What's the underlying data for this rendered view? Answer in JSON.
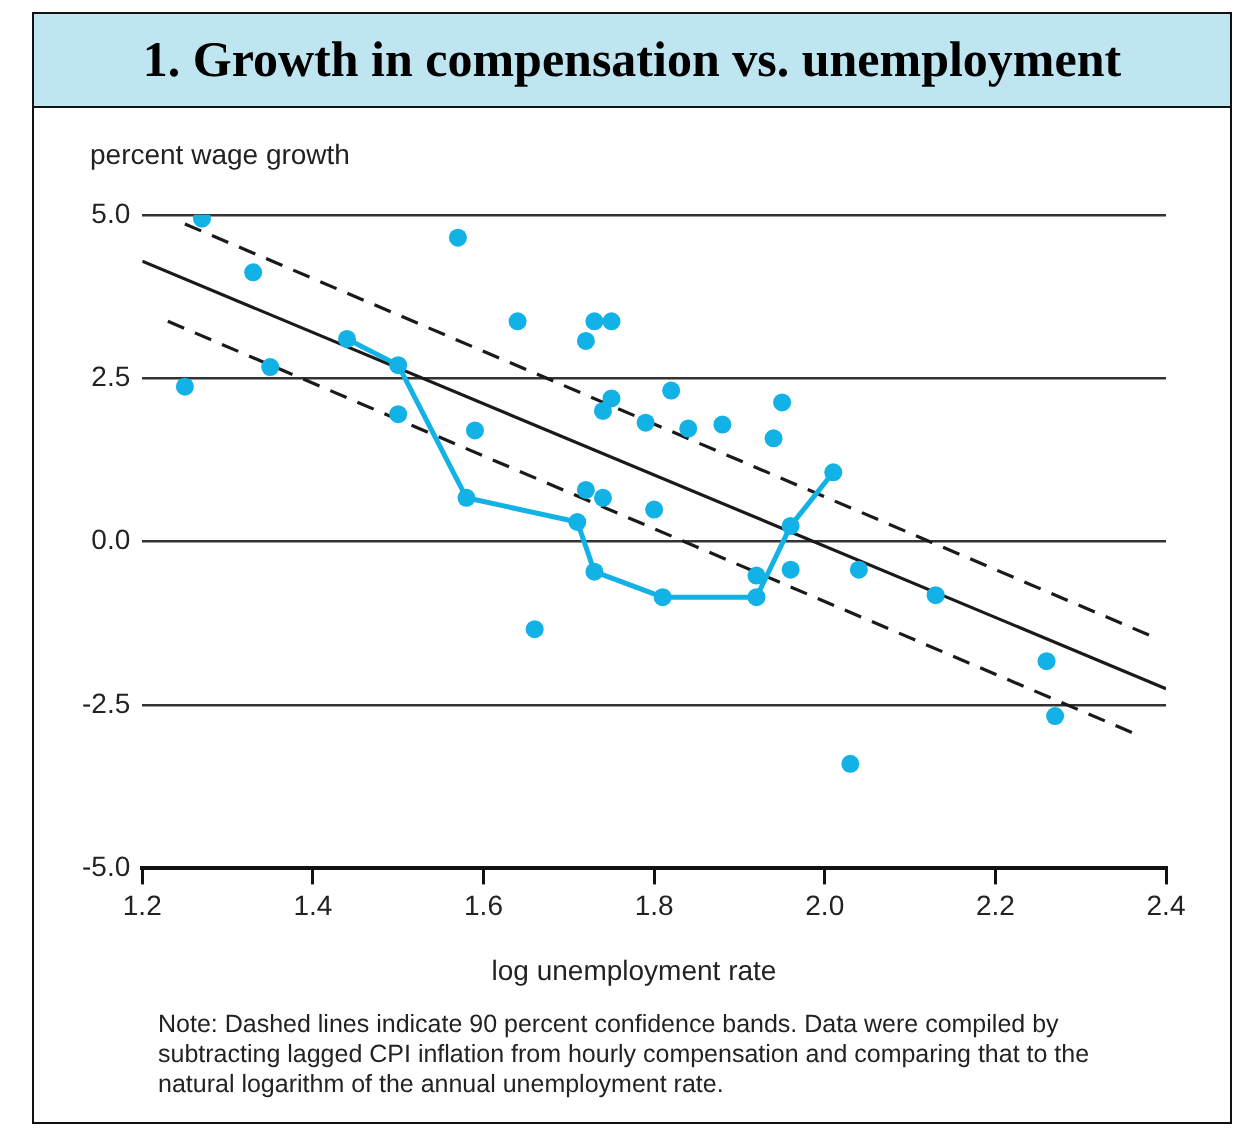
{
  "chart_data": {
    "type": "scatter",
    "title": "1. Growth in compensation vs. unemployment",
    "xlabel": "log unemployment rate",
    "ylabel": "percent wage growth",
    "xlim": [
      1.2,
      2.4
    ],
    "xticks": [
      {
        "value": 1.2,
        "label": "1.2"
      },
      1.4,
      1.6,
      1.8,
      {
        "value": 2.0,
        "label": "2.0"
      },
      2.2,
      2.4
    ],
    "ylim": [
      -5,
      5
    ],
    "yticks": [
      {
        "value": -5,
        "label": "-5.0"
      },
      -2.5,
      {
        "value": 0,
        "label": "0.0"
      },
      2.5,
      {
        "value": 5,
        "label": "5.0"
      }
    ],
    "grid": "y",
    "legend": false,
    "series": [
      {
        "type": "scatter",
        "color": "#12b1e6",
        "marker": "circle",
        "x": [
          1.25,
          1.27,
          1.33,
          1.35,
          1.5,
          1.57,
          1.59,
          1.64,
          1.66,
          1.72,
          1.73,
          1.72,
          1.75,
          1.75,
          1.74,
          1.74,
          1.79,
          1.8,
          1.82,
          1.84,
          1.88,
          1.92,
          1.94,
          1.95,
          1.96,
          2.03,
          2.04,
          2.13,
          2.26,
          2.27
        ],
        "values": [
          2.37,
          4.94,
          4.12,
          2.67,
          1.95,
          4.65,
          1.7,
          3.37,
          -1.34,
          0.79,
          3.37,
          3.07,
          3.37,
          2.19,
          2.0,
          0.67,
          1.82,
          0.49,
          2.31,
          1.73,
          1.79,
          -0.52,
          1.58,
          2.13,
          -0.43,
          -3.4,
          -0.43,
          -0.82,
          -1.83,
          -2.67
        ]
      },
      {
        "type": "line",
        "color": "#12b1e6",
        "marker": "circle",
        "line_style": "solid",
        "x": [
          1.44,
          1.5,
          1.58,
          1.71,
          1.73,
          1.81,
          1.92,
          1.96,
          2.01
        ],
        "values": [
          3.1,
          2.7,
          0.67,
          0.3,
          -0.46,
          -0.85,
          -0.85,
          0.24,
          1.06
        ]
      },
      {
        "type": "line",
        "color": "#1a1a1a",
        "marker": "none",
        "line_style": "solid",
        "x": [
          1.2,
          2.4
        ],
        "values": [
          4.29,
          -2.25
        ]
      },
      {
        "type": "line",
        "color": "#1a1a1a",
        "marker": "none",
        "line_style": "dashed",
        "x": [
          1.25,
          2.38
        ],
        "values": [
          4.86,
          -1.43
        ]
      },
      {
        "type": "line",
        "color": "#1a1a1a",
        "marker": "none",
        "line_style": "dashed",
        "x": [
          1.23,
          2.36
        ],
        "values": [
          3.37,
          -2.92
        ]
      }
    ],
    "annotations": [
      "Note: Dashed lines indicate 90 percent confidence bands. Data were compiled by subtracting lagged CPI inflation from hourly compensation and comparing that to the natural logarithm of the annual unemployment rate."
    ]
  }
}
